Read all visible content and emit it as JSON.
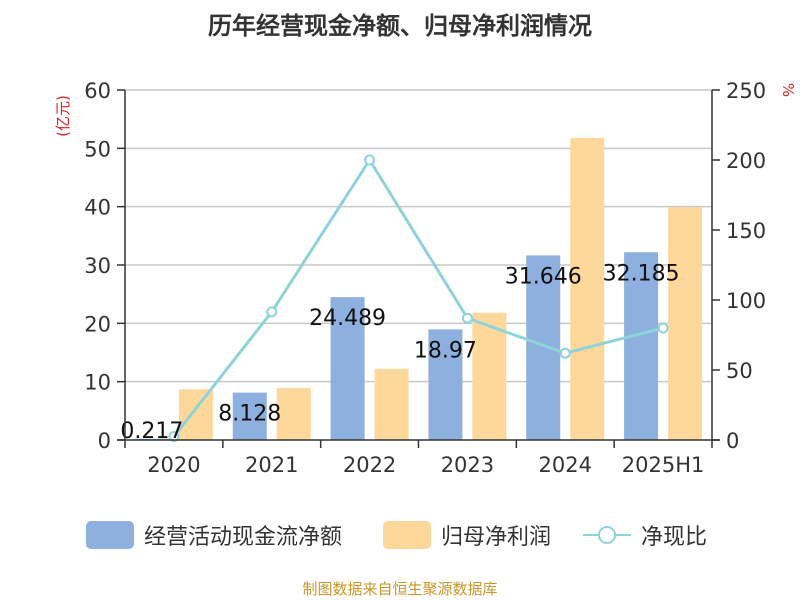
{
  "title": "历年经营现金净额、归母净利润情况",
  "source": "制图数据来自恒生聚源数据库",
  "colors": {
    "bar_cash": "#8eb0de",
    "bar_profit": "#fdd89a",
    "line_ratio": "#8dd3d9",
    "axis_unit": "#e02020",
    "grid": "#c8c8c8",
    "axis": "#333333",
    "text": "#333333"
  },
  "legend": {
    "cash": "经营活动现金流净额",
    "profit": "归母净利润",
    "ratio": "净现比"
  },
  "chart_data": {
    "type": "bar",
    "categories": [
      "2020",
      "2021",
      "2022",
      "2023",
      "2024",
      "2025H1"
    ],
    "series": [
      {
        "name": "经营活动现金流净额",
        "values": [
          0.217,
          8.128,
          24.489,
          18.97,
          31.646,
          32.185
        ],
        "axis": "left",
        "labels": [
          "0.217",
          "8.128",
          "24.489",
          "18.97",
          "31.646",
          "32.185"
        ]
      },
      {
        "name": "归母净利润",
        "values": [
          8.7,
          8.9,
          12.2,
          21.8,
          51.8,
          39.9
        ],
        "axis": "left"
      },
      {
        "name": "净现比",
        "type": "line",
        "values": [
          2.5,
          91.5,
          200,
          87,
          62,
          80
        ],
        "axis": "right"
      }
    ],
    "ylabel_left": "(亿元)",
    "ylabel_right": "%",
    "ylim_left": [
      0,
      60
    ],
    "ylim_right": [
      0,
      250
    ],
    "yticks_left": [
      "0",
      "10",
      "20",
      "30",
      "40",
      "50",
      "60"
    ],
    "yticks_right": [
      "0",
      "50",
      "100",
      "150",
      "200",
      "250"
    ],
    "grid": true,
    "legend_position": "bottom"
  }
}
